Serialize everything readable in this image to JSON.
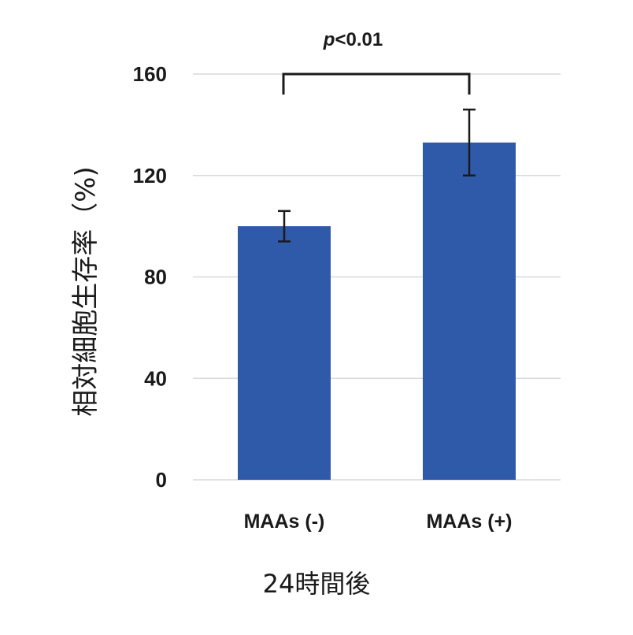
{
  "chart_data": {
    "type": "bar",
    "categories": [
      "MAAs (-)",
      "MAAs (+)"
    ],
    "values": [
      100,
      133
    ],
    "errors": [
      6,
      13
    ],
    "ylabel": "相対細胞生存率（%)",
    "xlabel": "24時間後",
    "ylim": [
      0,
      160
    ],
    "yticks": [
      0,
      40,
      80,
      120,
      160
    ],
    "grid": true,
    "annotation": {
      "text_italic": "p",
      "text_rest": "<0.01",
      "between": [
        0,
        1
      ]
    },
    "colors": {
      "bar": "#2f5aa9",
      "grid": "#d9d9d9",
      "error": "#1a1a1a"
    }
  }
}
